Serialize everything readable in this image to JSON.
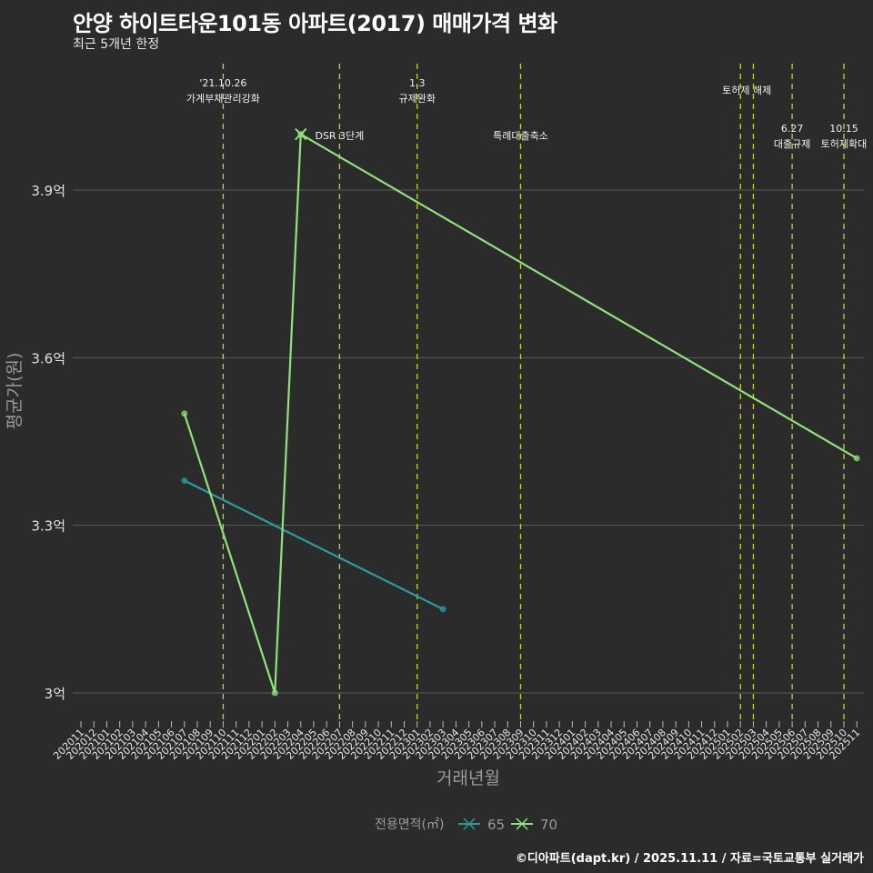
{
  "header": {
    "title": "안양 하이트타운101동 아파트(2017) 매매가격 변화",
    "subtitle": "최근 5개년 한정"
  },
  "caption": "©디아파트(dapt.kr) / 2025.11.11 / 자료=국토교통부 실거래가",
  "legend": {
    "title": "전용면적(㎡)",
    "items": [
      {
        "label": "65",
        "color": "#2a9d9b"
      },
      {
        "label": "70",
        "color": "#8fe37a"
      }
    ]
  },
  "colors": {
    "background": "#2b2b2b",
    "grid": "#5a5a5a",
    "event_line": "#c8d42a",
    "series_65": "#2a9d9b",
    "series_70": "#8fe37a"
  },
  "chart_data": {
    "type": "line",
    "title": "안양 하이트타운101동 아파트(2017) 매매가격 변화",
    "subtitle": "최근 5개년 한정",
    "xlabel": "거래년월",
    "ylabel": "평균가(원)",
    "ylim": [
      2.95,
      4.1
    ],
    "yticks": [
      {
        "value": 3.0,
        "label": "3억"
      },
      {
        "value": 3.3,
        "label": "3.3억"
      },
      {
        "value": 3.6,
        "label": "3.6억"
      },
      {
        "value": 3.9,
        "label": "3.9억"
      }
    ],
    "x_categories": [
      "202011",
      "202012",
      "202101",
      "202102",
      "202103",
      "202104",
      "202105",
      "202106",
      "202107",
      "202108",
      "202109",
      "202110",
      "202111",
      "202112",
      "202201",
      "202202",
      "202203",
      "202204",
      "202205",
      "202206",
      "202207",
      "202208",
      "202209",
      "202210",
      "202211",
      "202212",
      "202301",
      "202302",
      "202303",
      "202304",
      "202305",
      "202306",
      "202307",
      "202308",
      "202309",
      "202310",
      "202311",
      "202312",
      "202401",
      "202402",
      "202403",
      "202404",
      "202405",
      "202406",
      "202407",
      "202408",
      "202409",
      "202410",
      "202411",
      "202412",
      "202501",
      "202502",
      "202503",
      "202504",
      "202505",
      "202506",
      "202507",
      "202508",
      "202509",
      "202510",
      "202511"
    ],
    "grid": true,
    "legend_position": "bottom",
    "series": [
      {
        "name": "65",
        "points": [
          {
            "x": "202107",
            "y": 3.38
          },
          {
            "x": "202303",
            "y": 3.15
          }
        ]
      },
      {
        "name": "70",
        "points": [
          {
            "x": "202107",
            "y": 3.5
          },
          {
            "x": "202202",
            "y": 3.0
          },
          {
            "x": "202204",
            "y": 4.0
          },
          {
            "x": "202511",
            "y": 3.42
          }
        ]
      }
    ],
    "events": [
      {
        "x": "202110",
        "label_top": "'21.10.26",
        "label_bottom": "가계부채관리강화",
        "row": 1
      },
      {
        "x": "202207",
        "label_top": "",
        "label_bottom": "DSR 3단계",
        "row": 3
      },
      {
        "x": "202301",
        "label_top": "1.3",
        "label_bottom": "규제완화",
        "row": 1
      },
      {
        "x": "202309",
        "label_top": "",
        "label_bottom": "특례대출축소",
        "row": 3
      },
      {
        "x": "202502",
        "label_top": "",
        "label_bottom": "토허제 해제",
        "row": 2
      },
      {
        "x": "202503",
        "label_top": "",
        "label_bottom": "",
        "row": 2
      },
      {
        "x": "202506",
        "label_top": "6.27",
        "label_bottom": "대출규제",
        "row": 3
      },
      {
        "x": "202510",
        "label_top": "10.15",
        "label_bottom": "토허제확대",
        "row": 3
      }
    ]
  }
}
